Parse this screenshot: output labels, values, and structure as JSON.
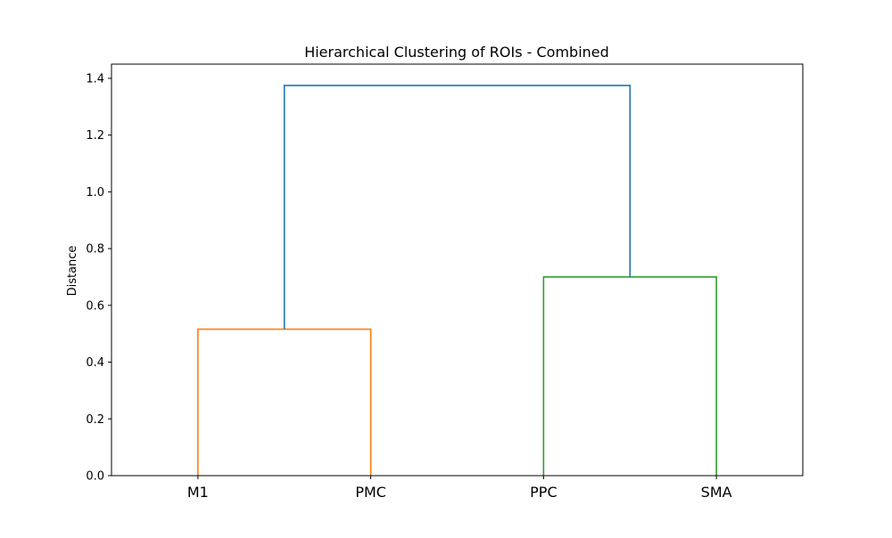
{
  "chart_data": {
    "type": "dendrogram",
    "title": "Hierarchical Clustering of ROIs - Combined",
    "xlabel": "",
    "ylabel": "Distance",
    "ylim": [
      0,
      1.45
    ],
    "yticks": [
      0.0,
      0.2,
      0.4,
      0.6,
      0.8,
      1.0,
      1.2,
      1.4
    ],
    "ytick_labels": [
      "0.0",
      "0.2",
      "0.4",
      "0.6",
      "0.8",
      "1.0",
      "1.2",
      "1.4"
    ],
    "leaves": [
      "M1",
      "PMC",
      "PPC",
      "SMA"
    ],
    "merges": [
      {
        "left": "M1",
        "right": "PMC",
        "distance": 0.516,
        "color": "#ff7f0e"
      },
      {
        "left": "PPC",
        "right": "SMA",
        "distance": 0.7,
        "color": "#2ca02c"
      },
      {
        "left": "M1+PMC",
        "right": "PPC+SMA",
        "distance": 1.375,
        "color": "#1f77b4"
      }
    ],
    "grid": false,
    "legend": "none"
  }
}
